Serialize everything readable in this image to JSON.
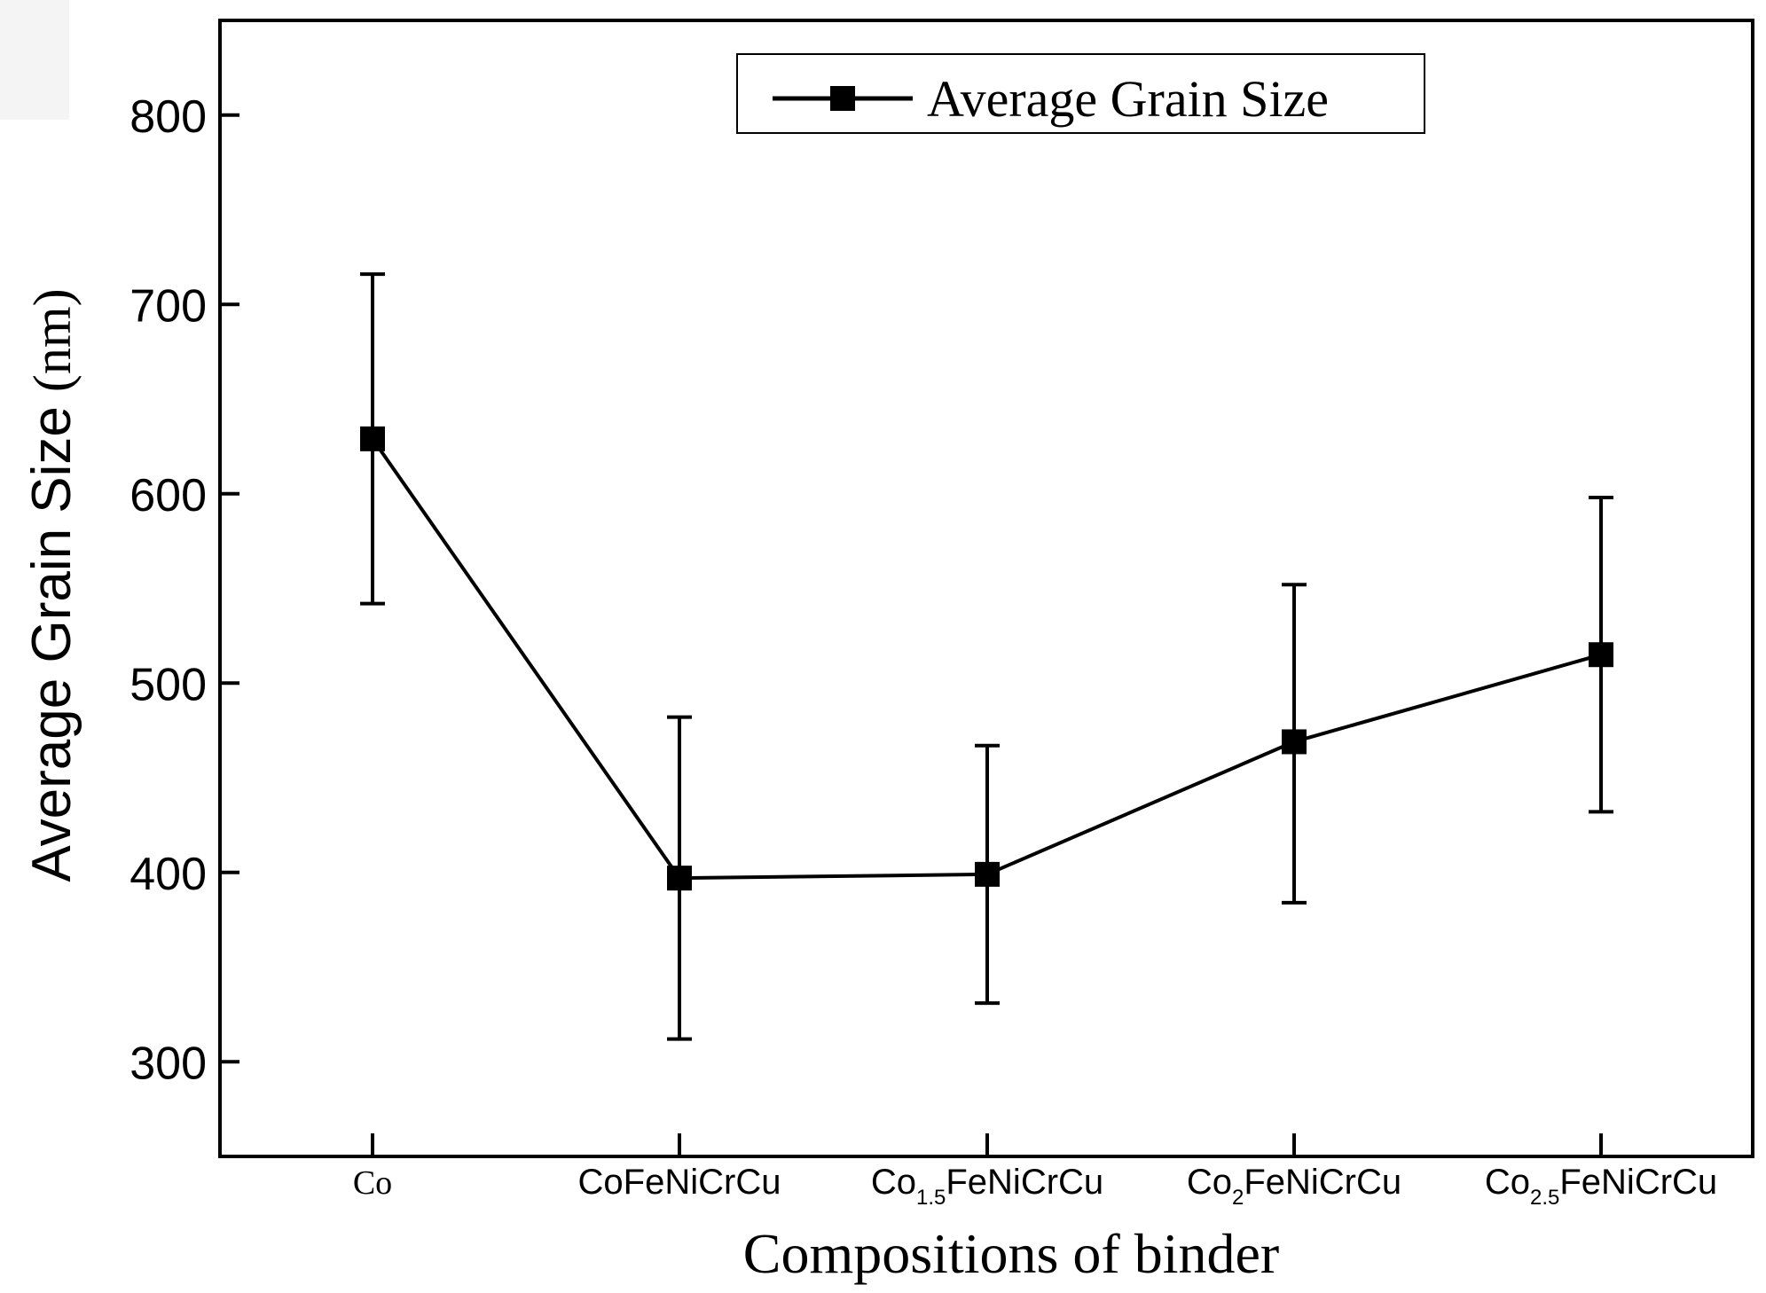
{
  "chart_data": {
    "type": "line",
    "title": "",
    "xlabel": "Compositions of binder",
    "ylabel": "Average Grain Size (nm)",
    "ylabel_main": "Average Grain Size",
    "ylabel_unit": "(nm)",
    "ylim": [
      250,
      850
    ],
    "yticks": [
      300,
      400,
      500,
      600,
      700,
      800
    ],
    "ytick_labels": [
      "300",
      "400",
      "500",
      "600",
      "700",
      "800"
    ],
    "categories": [
      {
        "base": "Co",
        "sub": "",
        "rest": ""
      },
      {
        "base": "CoFeNiCrCu",
        "sub": "",
        "rest": ""
      },
      {
        "base": "Co",
        "sub": "1.5",
        "rest": "FeNiCrCu"
      },
      {
        "base": "Co",
        "sub": "2",
        "rest": "FeNiCrCu"
      },
      {
        "base": "Co",
        "sub": "2.5",
        "rest": "FeNiCrCu"
      }
    ],
    "series": [
      {
        "name": "Average Grain Size",
        "marker": "square",
        "values": [
          629,
          397,
          399,
          469,
          515
        ],
        "error_low": [
          542,
          312,
          331,
          384,
          432
        ],
        "error_high": [
          716,
          482,
          467,
          552,
          598
        ]
      }
    ],
    "legend": {
      "label": "Average Grain Size",
      "position": "top-right"
    },
    "grid": false,
    "colors": {
      "line": "#000000",
      "axis": "#000000",
      "background": "#ffffff"
    }
  }
}
